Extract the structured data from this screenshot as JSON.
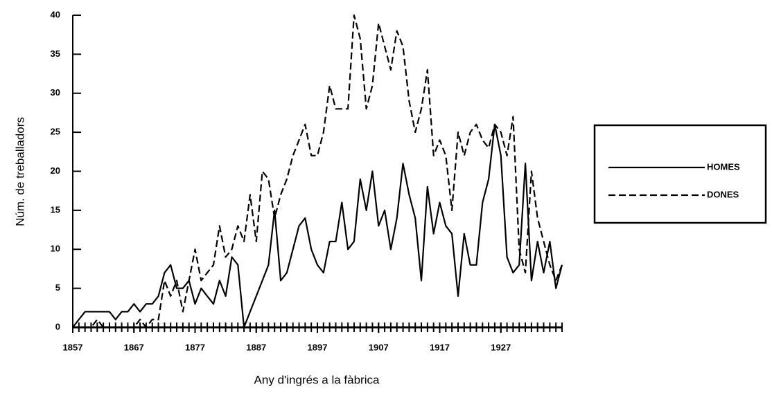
{
  "chart_data": {
    "type": "line",
    "xlabel": "Any d'ingrés a la fàbrica",
    "ylabel": "Núm. de treballadors",
    "x": [
      1857,
      1858,
      1859,
      1860,
      1861,
      1862,
      1863,
      1864,
      1865,
      1866,
      1867,
      1868,
      1869,
      1870,
      1871,
      1872,
      1873,
      1874,
      1875,
      1876,
      1877,
      1878,
      1879,
      1880,
      1881,
      1882,
      1883,
      1884,
      1885,
      1886,
      1887,
      1888,
      1889,
      1890,
      1891,
      1892,
      1893,
      1894,
      1895,
      1896,
      1897,
      1898,
      1899,
      1900,
      1901,
      1902,
      1903,
      1904,
      1905,
      1906,
      1907,
      1908,
      1909,
      1910,
      1911,
      1912,
      1913,
      1914,
      1915,
      1916,
      1917,
      1918,
      1919,
      1920,
      1921,
      1922,
      1923,
      1924,
      1925,
      1926,
      1927,
      1928,
      1929,
      1930,
      1931,
      1932,
      1933,
      1934,
      1935,
      1936,
      1937
    ],
    "series": [
      {
        "name": "HOMES",
        "color": "#000000",
        "dash": false,
        "values": [
          0,
          1,
          2,
          2,
          2,
          2,
          2,
          1,
          2,
          2,
          3,
          2,
          3,
          3,
          4,
          7,
          8,
          5,
          5,
          6,
          3,
          5,
          4,
          3,
          6,
          4,
          9,
          8,
          0,
          2,
          4,
          6,
          8,
          15,
          6,
          7,
          10,
          13,
          14,
          10,
          8,
          7,
          11,
          11,
          16,
          10,
          11,
          19,
          15,
          20,
          13,
          15,
          10,
          14,
          21,
          17,
          14,
          6,
          18,
          12,
          16,
          13,
          12,
          4,
          12,
          8,
          8,
          16,
          19,
          26,
          22,
          9,
          7,
          8,
          21,
          6,
          11,
          7,
          11,
          5,
          8
        ]
      },
      {
        "name": "DONES",
        "color": "#000000",
        "dash": true,
        "values": [
          0,
          0,
          0,
          0,
          1,
          0,
          0,
          0,
          0,
          0,
          0,
          1,
          0,
          1,
          1,
          6,
          4,
          6,
          2,
          6,
          10,
          6,
          7,
          8,
          13,
          9,
          10,
          13,
          11,
          17,
          11,
          20,
          19,
          14,
          17,
          19,
          22,
          24,
          26,
          22,
          22,
          25,
          31,
          28,
          28,
          28,
          40,
          37,
          28,
          31,
          39,
          36,
          33,
          38,
          36,
          29,
          25,
          28,
          33,
          22,
          24,
          22,
          15,
          25,
          22,
          25,
          26,
          24,
          23,
          26,
          25,
          22,
          27,
          10,
          7,
          20,
          14,
          11,
          8,
          6,
          8
        ]
      }
    ],
    "xlim": [
      1857,
      1937
    ],
    "xticks": [
      1857,
      1867,
      1877,
      1887,
      1897,
      1907,
      1917,
      1927
    ],
    "ylim": [
      0,
      40
    ],
    "yticks": [
      0,
      5,
      10,
      15,
      20,
      25,
      30,
      35,
      40
    ],
    "grid": false,
    "legend": "right"
  }
}
